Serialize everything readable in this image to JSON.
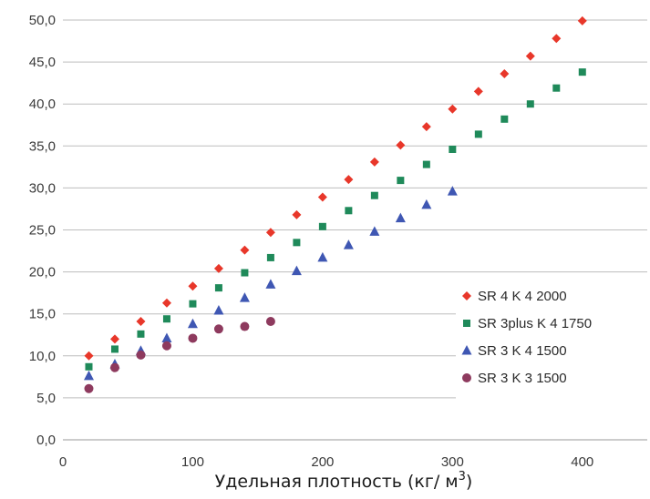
{
  "chart_data": {
    "type": "scatter",
    "title": "",
    "xlabel": "Удельная плотность  (кг/ м",
    "xlabel_sup": "3",
    "xlabel_close": ")",
    "ylabel": "",
    "xlim": [
      0,
      450
    ],
    "ylim": [
      0,
      50
    ],
    "x_ticks": [
      "0",
      "100",
      "200",
      "300",
      "400"
    ],
    "x_tick_values": [
      0,
      100,
      200,
      300,
      400
    ],
    "y_ticks": [
      "0,0",
      "5,0",
      "10,0",
      "15,0",
      "20,0",
      "25,0",
      "30,0",
      "35,0",
      "40,0",
      "45,0",
      "50,0"
    ],
    "y_tick_values": [
      0,
      5,
      10,
      15,
      20,
      25,
      30,
      35,
      40,
      45,
      50
    ],
    "grid": "horizontal",
    "legend_position": "bottom-right",
    "series": [
      {
        "name": "SR 4 K 4 2000",
        "marker": "diamond",
        "color": "#e8372a",
        "x": [
          20,
          40,
          60,
          80,
          100,
          120,
          140,
          160,
          180,
          200,
          220,
          240,
          260,
          280,
          300,
          320,
          340,
          360,
          380,
          400
        ],
        "y": [
          10.0,
          12.0,
          14.1,
          16.3,
          18.3,
          20.4,
          22.6,
          24.7,
          26.8,
          28.9,
          31.0,
          33.1,
          35.1,
          37.3,
          39.4,
          41.5,
          43.6,
          45.7,
          47.8,
          49.9
        ]
      },
      {
        "name": "SR 3plus K 4 1750",
        "marker": "square",
        "color": "#1f8a5a",
        "x": [
          20,
          40,
          60,
          80,
          100,
          120,
          140,
          160,
          180,
          200,
          220,
          240,
          260,
          280,
          300,
          320,
          340,
          360,
          380,
          400
        ],
        "y": [
          8.7,
          10.8,
          12.6,
          14.4,
          16.2,
          18.1,
          19.9,
          21.7,
          23.5,
          25.4,
          27.3,
          29.1,
          30.9,
          32.8,
          34.6,
          36.4,
          38.2,
          40.0,
          41.9,
          43.8
        ]
      },
      {
        "name": "SR 3 K 4 1500",
        "marker": "triangle",
        "color": "#3f57b3",
        "x": [
          20,
          40,
          60,
          80,
          100,
          120,
          140,
          160,
          180,
          200,
          220,
          240,
          260,
          280,
          300
        ],
        "y": [
          7.6,
          9.0,
          10.6,
          12.1,
          13.8,
          15.4,
          16.9,
          18.5,
          20.1,
          21.7,
          23.2,
          24.8,
          26.4,
          28.0,
          29.6
        ]
      },
      {
        "name": "SR 3 K 3 1500",
        "marker": "circle",
        "color": "#8e3a5e",
        "x": [
          20,
          40,
          60,
          80,
          100,
          120,
          140,
          160
        ],
        "y": [
          6.1,
          8.6,
          10.1,
          11.2,
          12.1,
          13.2,
          13.5,
          14.1
        ]
      }
    ]
  }
}
